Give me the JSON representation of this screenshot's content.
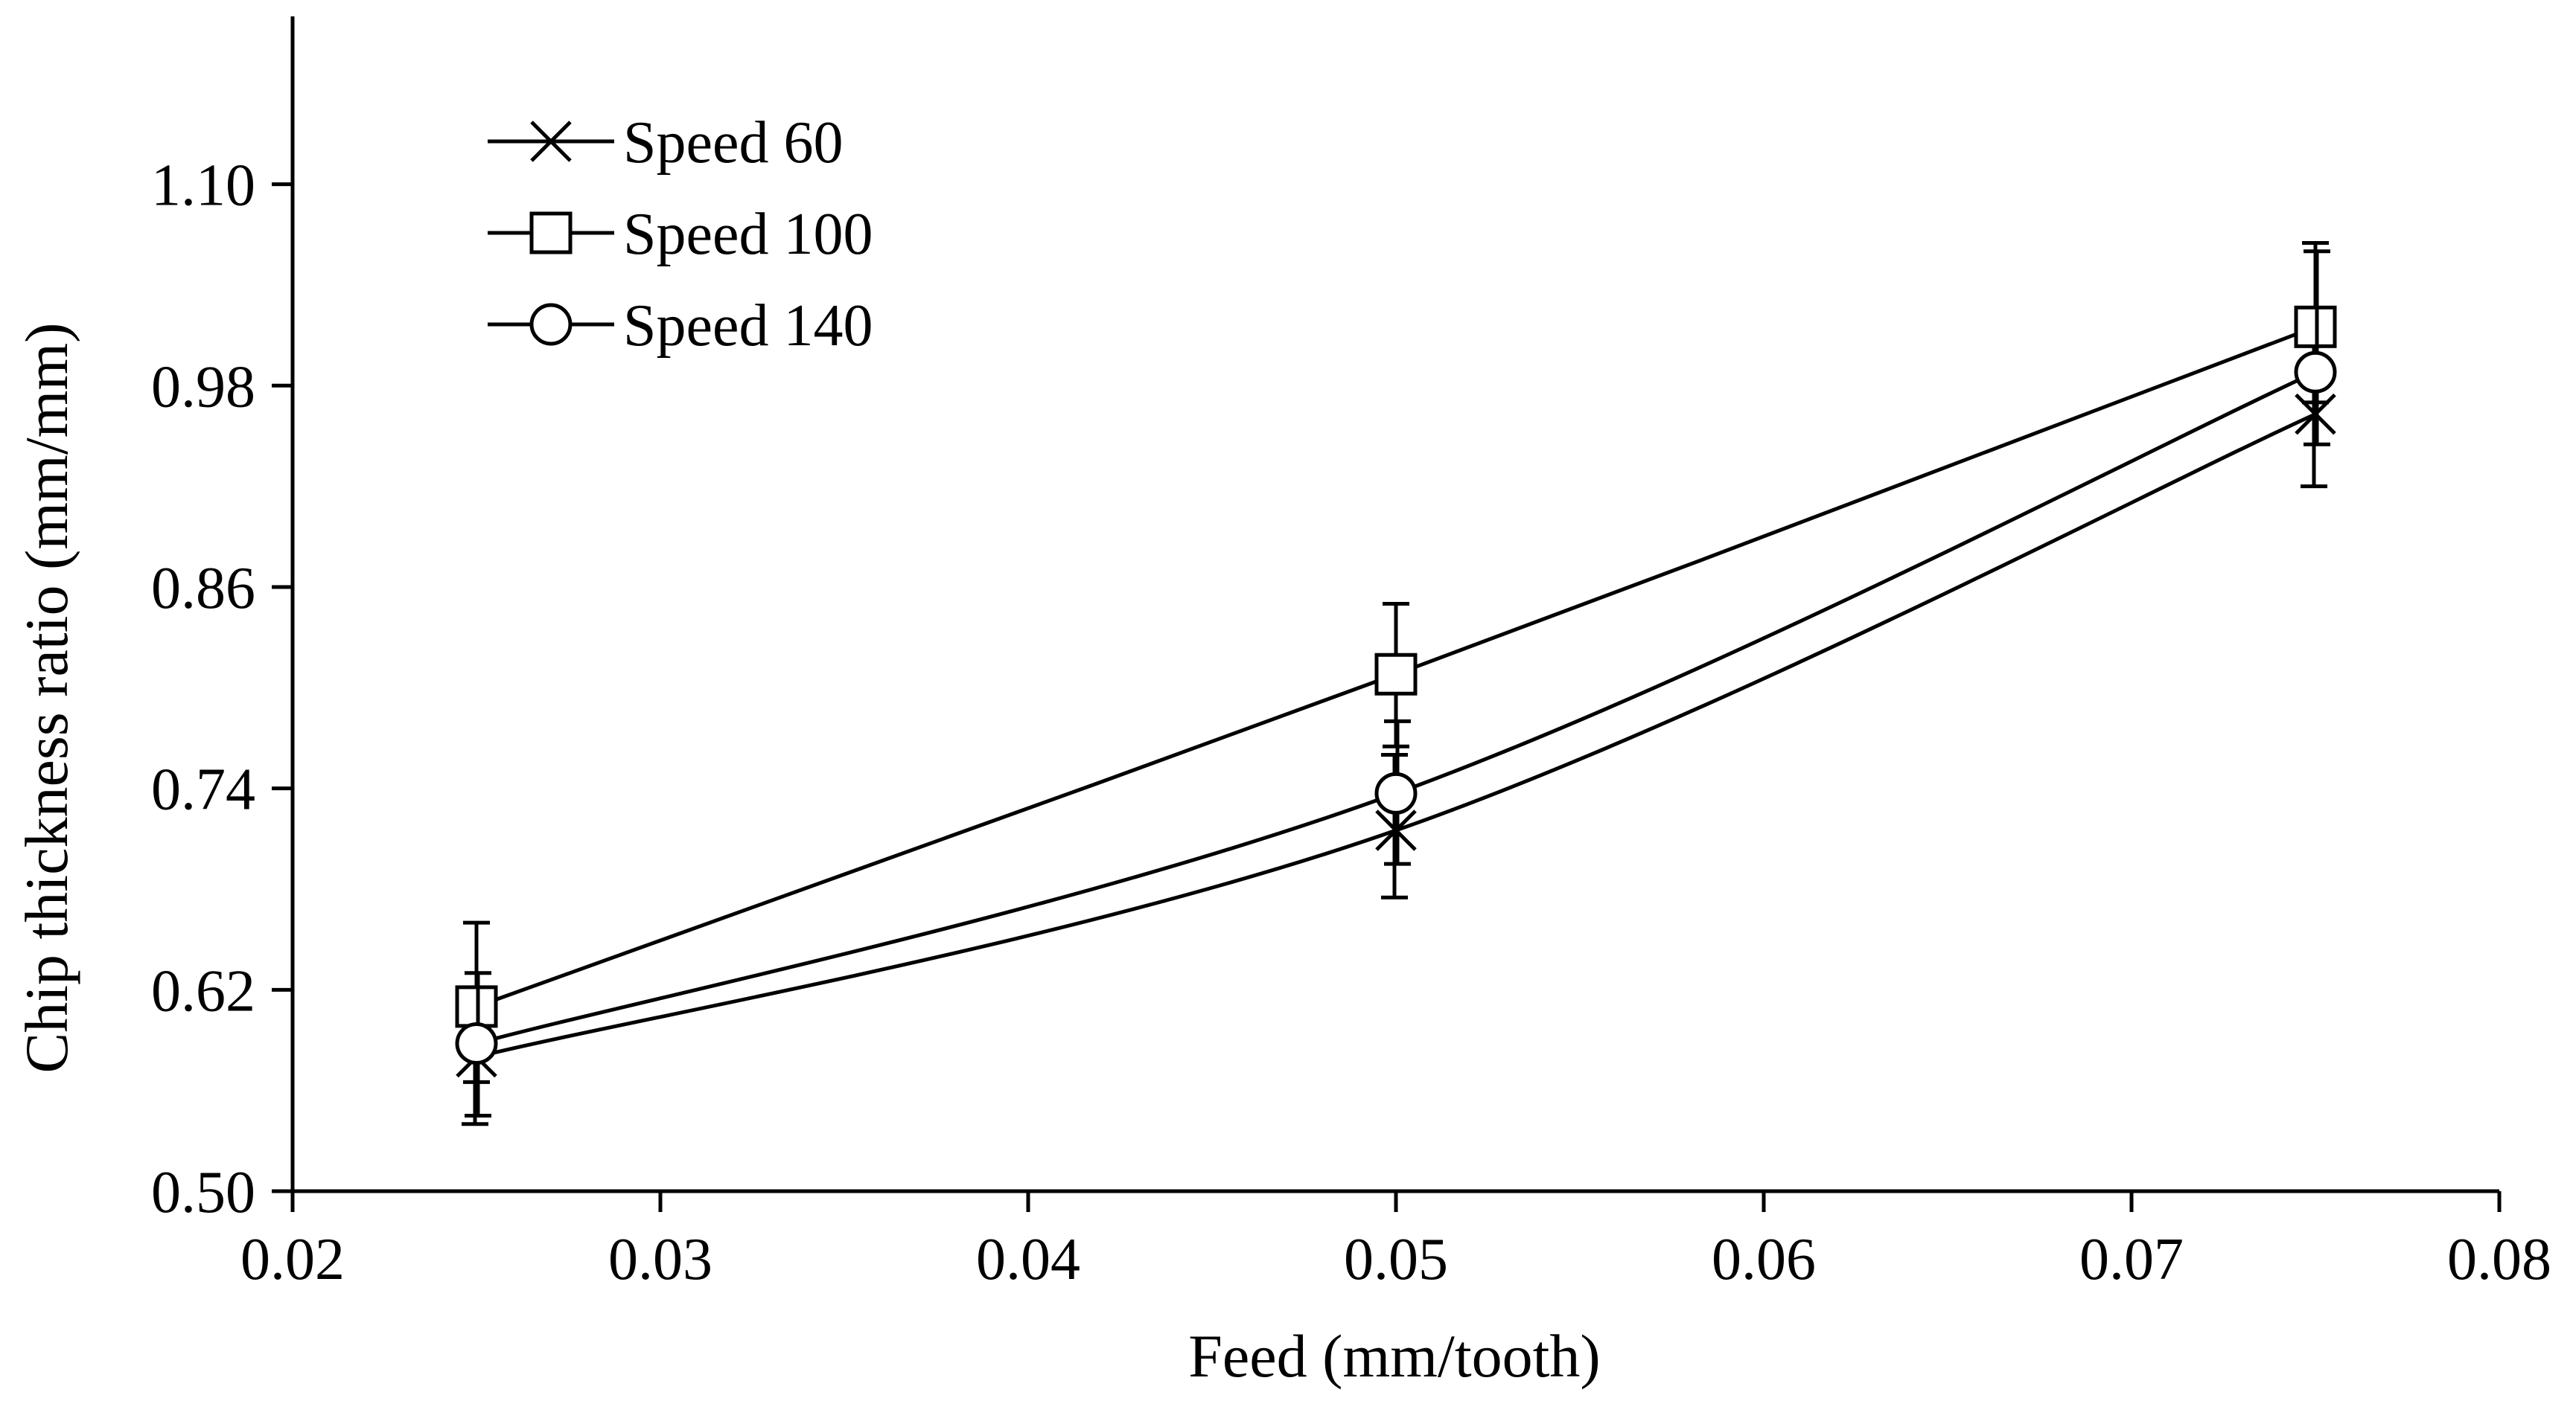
{
  "chart_data": {
    "type": "line",
    "title": "",
    "xlabel": "Feed (mm/tooth)",
    "ylabel": "Chip thickness ratio (mm/mm)",
    "xlim": [
      0.02,
      0.08
    ],
    "ylim": [
      0.5,
      1.2
    ],
    "x_ticks": [
      0.02,
      0.03,
      0.04,
      0.05,
      0.06,
      0.07,
      0.08
    ],
    "x_tick_labels": [
      "0.02",
      "0.03",
      "0.04",
      "0.05",
      "0.06",
      "0.07",
      "0.08"
    ],
    "y_ticks": [
      0.5,
      0.62,
      0.74,
      0.86,
      0.98,
      1.1
    ],
    "y_tick_labels": [
      "0.50",
      "0.62",
      "0.74",
      "0.86",
      "0.98",
      "1.10"
    ],
    "grid": false,
    "legend_position": "top-left",
    "x": [
      0.025,
      0.05,
      0.075
    ],
    "series": [
      {
        "name": "Speed 60",
        "marker": "x",
        "values": [
          0.58,
          0.715,
          0.963
        ],
        "error_low": [
          0.54,
          0.675,
          0.92
        ],
        "error_high": [
          0.62,
          0.76,
          1.01
        ]
      },
      {
        "name": "Speed 100",
        "marker": "square",
        "values": [
          0.61,
          0.808,
          1.015
        ],
        "error_low": [
          0.565,
          0.765,
          0.97
        ],
        "error_high": [
          0.66,
          0.85,
          1.065
        ]
      },
      {
        "name": "Speed 140",
        "marker": "circle",
        "values": [
          0.588,
          0.737,
          0.988
        ],
        "error_low": [
          0.545,
          0.695,
          0.945
        ],
        "error_high": [
          0.63,
          0.78,
          1.06
        ]
      }
    ]
  },
  "colors": {
    "line": "#000000",
    "background": "#ffffff"
  }
}
